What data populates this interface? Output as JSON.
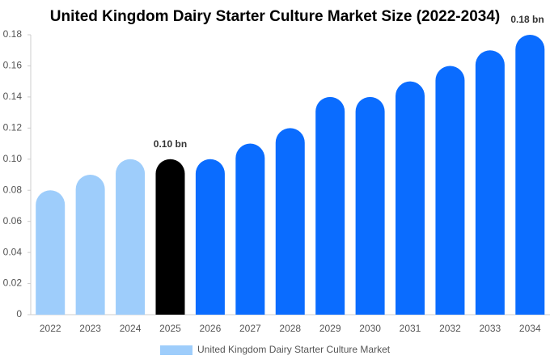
{
  "chart_data": {
    "type": "bar",
    "title": "United Kingdom Dairy Starter Culture Market Size (2022-2034)",
    "categories": [
      "2022",
      "2023",
      "2024",
      "2025",
      "2026",
      "2027",
      "2028",
      "2029",
      "2030",
      "2031",
      "2032",
      "2033",
      "2034"
    ],
    "series": [
      {
        "name": "United Kingdom Dairy Starter Culture Market",
        "color": "#9ecdfb",
        "values": [
          0.08,
          0.09,
          0.1,
          0.1,
          0.1,
          0.11,
          0.12,
          0.14,
          0.14,
          0.15,
          0.16,
          0.17,
          0.18
        ],
        "colors": [
          "#9ecdfb",
          "#9ecdfb",
          "#9ecdfb",
          "#000000",
          "#0a6cff",
          "#0a6cff",
          "#0a6cff",
          "#0a6cff",
          "#0a6cff",
          "#0a6cff",
          "#0a6cff",
          "#0a6cff",
          "#0a6cff"
        ],
        "value_labels": [
          null,
          null,
          null,
          "0.10 bn",
          null,
          null,
          null,
          null,
          null,
          null,
          null,
          null,
          "0.18 bn"
        ]
      }
    ],
    "ylim": [
      0,
      0.18
    ],
    "yticks": [
      0,
      0.02,
      0.04,
      0.06,
      0.08,
      {
        "value": 0.1,
        "label": "0.10"
      },
      0.12,
      0.14,
      0.16,
      0.18
    ],
    "grid": false
  }
}
